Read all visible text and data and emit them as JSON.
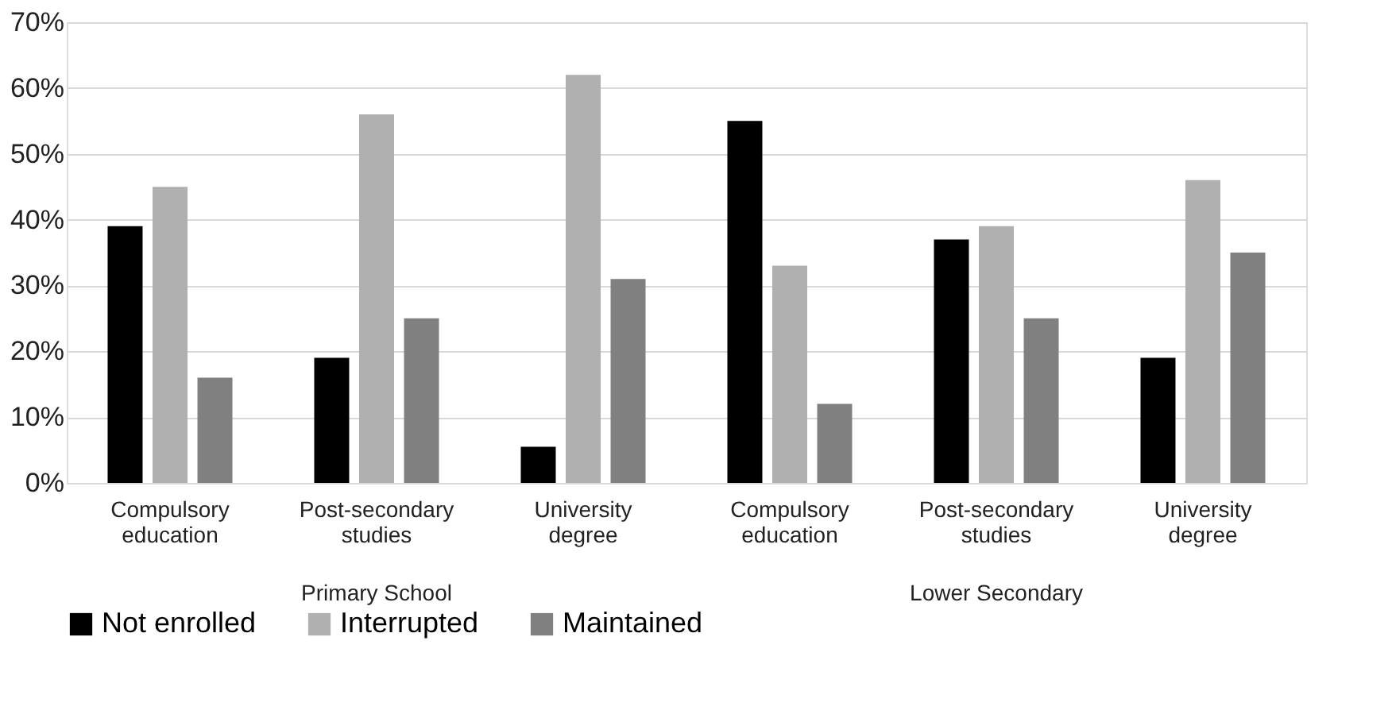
{
  "chart_data": {
    "type": "bar",
    "categories": [
      "Compulsory education",
      "Post-secondary studies",
      "University degree",
      "Compulsory education",
      "Post-secondary studies",
      "University degree"
    ],
    "series": [
      {
        "name": "Not enrolled",
        "color": "#000000",
        "values": [
          39,
          19,
          5.5,
          55,
          37,
          19
        ]
      },
      {
        "name": "Interrupted",
        "color": "#b0b0b0",
        "values": [
          45,
          56,
          62,
          33,
          39,
          46
        ]
      },
      {
        "name": "Maintained",
        "color": "#808080",
        "values": [
          16,
          25,
          31,
          12,
          25,
          35
        ]
      }
    ],
    "annotations": [
      "Primary School",
      "Lower Secondary"
    ],
    "ylim": [
      0,
      70
    ],
    "yticks": [
      {
        "value": 0,
        "label": "0%"
      },
      {
        "value": 10,
        "label": "10%"
      },
      {
        "value": 20,
        "label": "20%"
      },
      {
        "value": 30,
        "label": "30%"
      },
      {
        "value": 40,
        "label": "40%"
      },
      {
        "value": 50,
        "label": "50%"
      },
      {
        "value": 60,
        "label": "60%"
      },
      {
        "value": 70,
        "label": "70%"
      }
    ],
    "grid": "y",
    "legend": "bottom"
  }
}
